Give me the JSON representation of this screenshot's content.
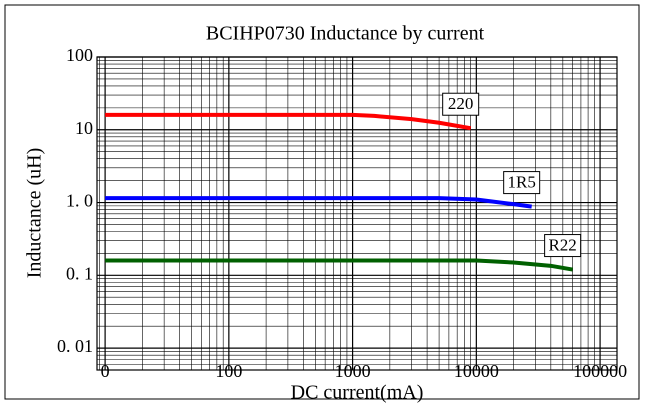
{
  "chart_data": {
    "type": "line",
    "title": "BCIHP0730 Inductance by current",
    "xlabel": "DC current(mA)",
    "ylabel": "Inductance (uH)",
    "xscale": "log",
    "yscale": "log",
    "grid": true,
    "minor_grid": true,
    "xlim": [
      8.6,
      137000
    ],
    "xticks": [
      {
        "value": 10,
        "label": "0"
      },
      100,
      1000,
      10000,
      100000
    ],
    "ylim": [
      0.005,
      100
    ],
    "yticks": [
      {
        "value": 0.01,
        "label": "0. 01"
      },
      {
        "value": 0.1,
        "label": "0. 1"
      },
      {
        "value": 1,
        "label": "1. 0"
      },
      10,
      100
    ],
    "series": [
      {
        "name": "220",
        "color": "#ff0000",
        "x": [
          10,
          1000,
          1500,
          3000,
          5000,
          9000
        ],
        "values": [
          16,
          16,
          15.5,
          14,
          12.5,
          10.5
        ]
      },
      {
        "name": "1R5",
        "color": "#0000ff",
        "x": [
          10,
          1000,
          5000,
          10000,
          20000,
          28000
        ],
        "values": [
          1.15,
          1.15,
          1.15,
          1.1,
          0.95,
          0.88
        ]
      },
      {
        "name": "R22",
        "color": "#006000",
        "x": [
          10,
          1000,
          10000,
          20000,
          40000,
          60000
        ],
        "values": [
          0.16,
          0.16,
          0.16,
          0.15,
          0.135,
          0.12
        ]
      }
    ]
  }
}
